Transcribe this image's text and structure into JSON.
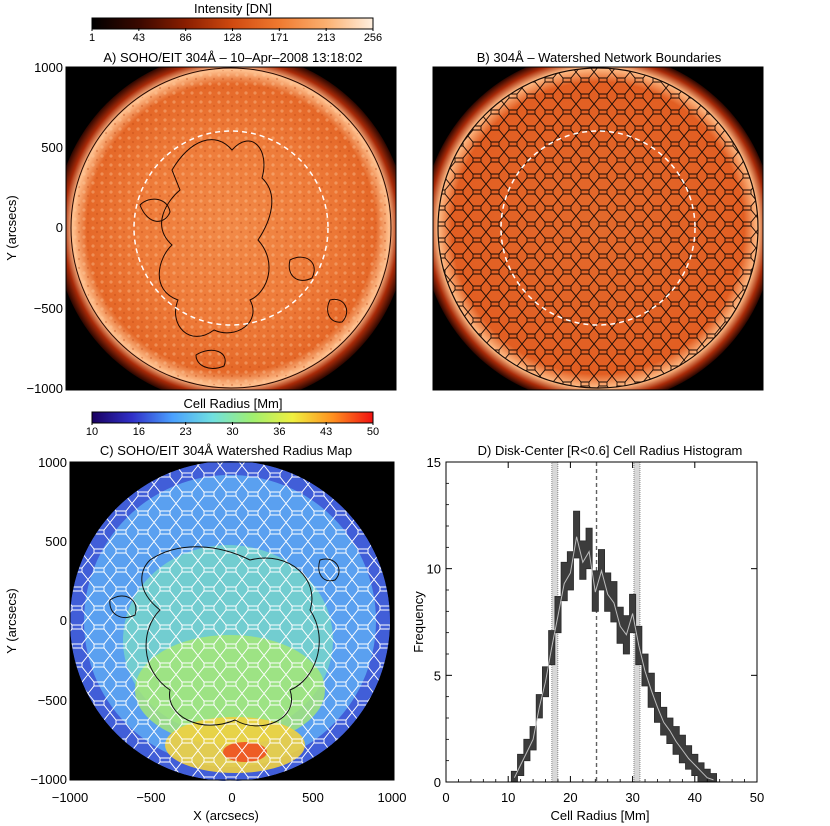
{
  "colorbars": {
    "intensity": {
      "label": "Intensity [DN]",
      "ticks": [
        "1",
        "43",
        "86",
        "128",
        "171",
        "213",
        "256"
      ],
      "colors": [
        "#000000",
        "#3a0800",
        "#8a1e00",
        "#d04a10",
        "#f07a30",
        "#fbb070",
        "#fff0e0"
      ]
    },
    "radius": {
      "label": "Cell Radius [Mm]",
      "ticks": [
        "10",
        "16",
        "23",
        "30",
        "36",
        "43",
        "50"
      ],
      "colors": [
        "#1a0060",
        "#3030c8",
        "#4aa0ff",
        "#70e0e0",
        "#a0f070",
        "#f0f040",
        "#ff9020",
        "#f01010"
      ]
    }
  },
  "panels": {
    "a": {
      "title": "A) SOHO/EIT 304Å – 10–Apr–2008 13:18:02",
      "ylabel": "Y (arcsecs)",
      "yticks": [
        "1000",
        "500",
        "0",
        "−500",
        "−1000"
      ]
    },
    "b": {
      "title": "B) 304Å – Watershed Network Boundaries"
    },
    "c": {
      "title": "C) SOHO/EIT 304Å Watershed Radius Map",
      "xlabel": "X (arcsecs)",
      "ylabel": "Y (arcsecs)",
      "xticks": [
        "−1000",
        "−500",
        "0",
        "500",
        "1000"
      ],
      "yticks": [
        "1000",
        "500",
        "0",
        "−500",
        "−1000"
      ]
    }
  },
  "chart_data": {
    "type": "area",
    "title": "D) Disk-Center [R<0.6] Cell Radius Histogram",
    "xlabel": "Cell Radius [Mm]",
    "ylabel": "Frequency",
    "xlim": [
      0,
      50
    ],
    "ylim": [
      0,
      15
    ],
    "xticks": [
      0,
      10,
      20,
      30,
      40,
      50
    ],
    "yticks": [
      0,
      5,
      10,
      15
    ],
    "x": [
      11,
      12,
      13,
      14,
      15,
      16,
      17,
      18,
      19,
      20,
      21,
      22,
      23,
      24,
      25,
      26,
      27,
      28,
      29,
      30,
      31,
      32,
      33,
      34,
      35,
      36,
      37,
      38,
      39,
      40,
      41,
      42,
      43
    ],
    "lower": [
      0,
      0.3,
      1.0,
      1.5,
      3.0,
      4.0,
      5.5,
      7.0,
      8.5,
      9.0,
      10.5,
      9.5,
      10.0,
      8.0,
      9.0,
      8.0,
      7.5,
      6.5,
      6.0,
      7.0,
      5.5,
      4.5,
      3.5,
      2.8,
      2.2,
      1.8,
      1.3,
      0.9,
      0.6,
      0.3,
      0,
      0,
      0
    ],
    "mid": [
      0.2,
      0.8,
      1.4,
      2.0,
      3.5,
      4.7,
      6.3,
      7.8,
      9.3,
      9.8,
      11.5,
      10.3,
      10.8,
      8.9,
      9.9,
      8.8,
      8.4,
      7.3,
      6.9,
      7.9,
      6.4,
      5.2,
      4.3,
      3.5,
      2.8,
      2.4,
      1.9,
      1.5,
      1.1,
      0.8,
      0.5,
      0.2,
      0.1
    ],
    "upper": [
      0.5,
      1.3,
      2.0,
      2.6,
      4.1,
      5.4,
      7.1,
      8.7,
      10.3,
      10.8,
      12.7,
      11.3,
      11.9,
      9.9,
      10.9,
      9.8,
      9.4,
      8.2,
      7.8,
      8.8,
      7.3,
      6.0,
      5.1,
      4.2,
      3.5,
      3.0,
      2.6,
      2.2,
      1.7,
      1.3,
      0.9,
      0.6,
      0.4
    ],
    "vlines": [
      {
        "x": 17.5,
        "style": "dotted-band"
      },
      {
        "x": 24.2,
        "style": "dashed"
      },
      {
        "x": 30.7,
        "style": "dotted-band"
      }
    ]
  }
}
